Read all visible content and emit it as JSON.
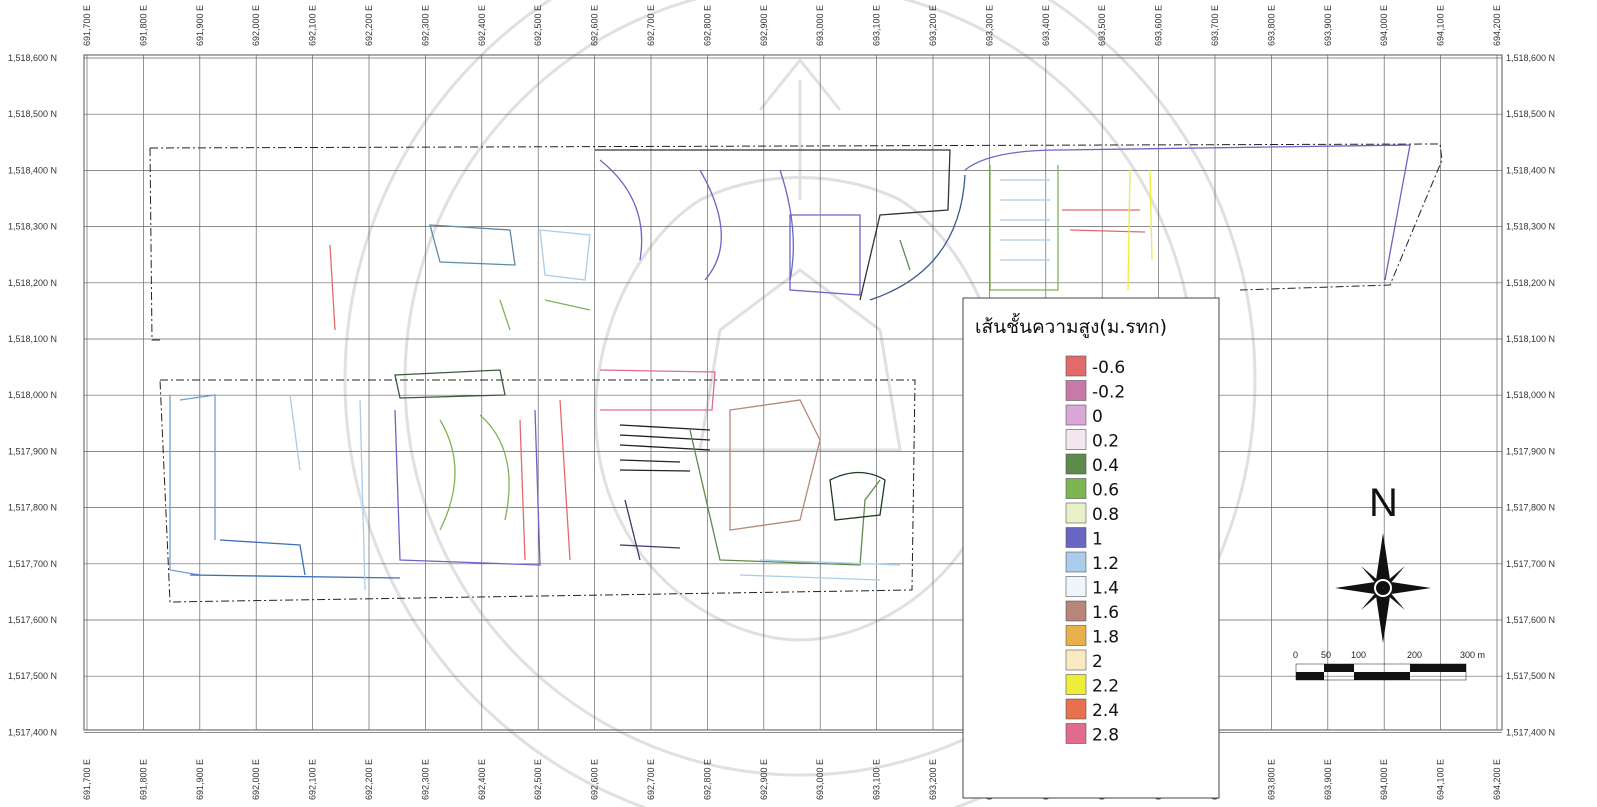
{
  "map": {
    "x_ticks": [
      "691,700 E",
      "691,800 E",
      "691,900 E",
      "692,000 E",
      "692,100 E",
      "692,200 E",
      "692,300 E",
      "692,400 E",
      "692,500 E",
      "692,600 E",
      "692,700 E",
      "692,800 E",
      "692,900 E",
      "693,000 E",
      "693,100 E",
      "693,200 E",
      "693,300 E",
      "693,400 E",
      "693,500 E",
      "693,600 E",
      "693,700 E",
      "693,800 E",
      "693,900 E",
      "694,000 E",
      "694,100 E",
      "694,200 E"
    ],
    "y_ticks": [
      "1,518,600 N",
      "1,518,500 N",
      "1,518,400 N",
      "1,518,300 N",
      "1,518,200 N",
      "1,518,100 N",
      "1,518,000 N",
      "1,517,900 N",
      "1,517,800 N",
      "1,517,700 N",
      "1,517,600 N",
      "1,517,500 N",
      "1,517,400 N"
    ],
    "grid": true,
    "watermark": "university seal (faint gray)"
  },
  "legend": {
    "title": "เส้นชั้นความสูง(ม.รทก)",
    "items": [
      {
        "label": "-0.6",
        "color": "#e36a6a"
      },
      {
        "label": "-0.2",
        "color": "#c77aa8"
      },
      {
        "label": "0",
        "color": "#d9a6d9"
      },
      {
        "label": "0.2",
        "color": "#f3e6ef"
      },
      {
        "label": "0.4",
        "color": "#5f8a4d"
      },
      {
        "label": "0.6",
        "color": "#7db552"
      },
      {
        "label": "0.8",
        "color": "#e8f0c8"
      },
      {
        "label": "1",
        "color": "#6a66c4"
      },
      {
        "label": "1.2",
        "color": "#a9cdea"
      },
      {
        "label": "1.4",
        "color": "#eef6fb"
      },
      {
        "label": "1.6",
        "color": "#b8857a"
      },
      {
        "label": "1.8",
        "color": "#e7b04a"
      },
      {
        "label": "2",
        "color": "#fbe9c2"
      },
      {
        "label": "2.2",
        "color": "#eded3a"
      },
      {
        "label": "2.4",
        "color": "#e7704e"
      },
      {
        "label": "2.8",
        "color": "#e26a8c"
      }
    ]
  },
  "north_arrow": {
    "letter": "N"
  },
  "scale_bar": {
    "labels": [
      "0",
      "50",
      "100",
      "200",
      "300 m"
    ]
  }
}
